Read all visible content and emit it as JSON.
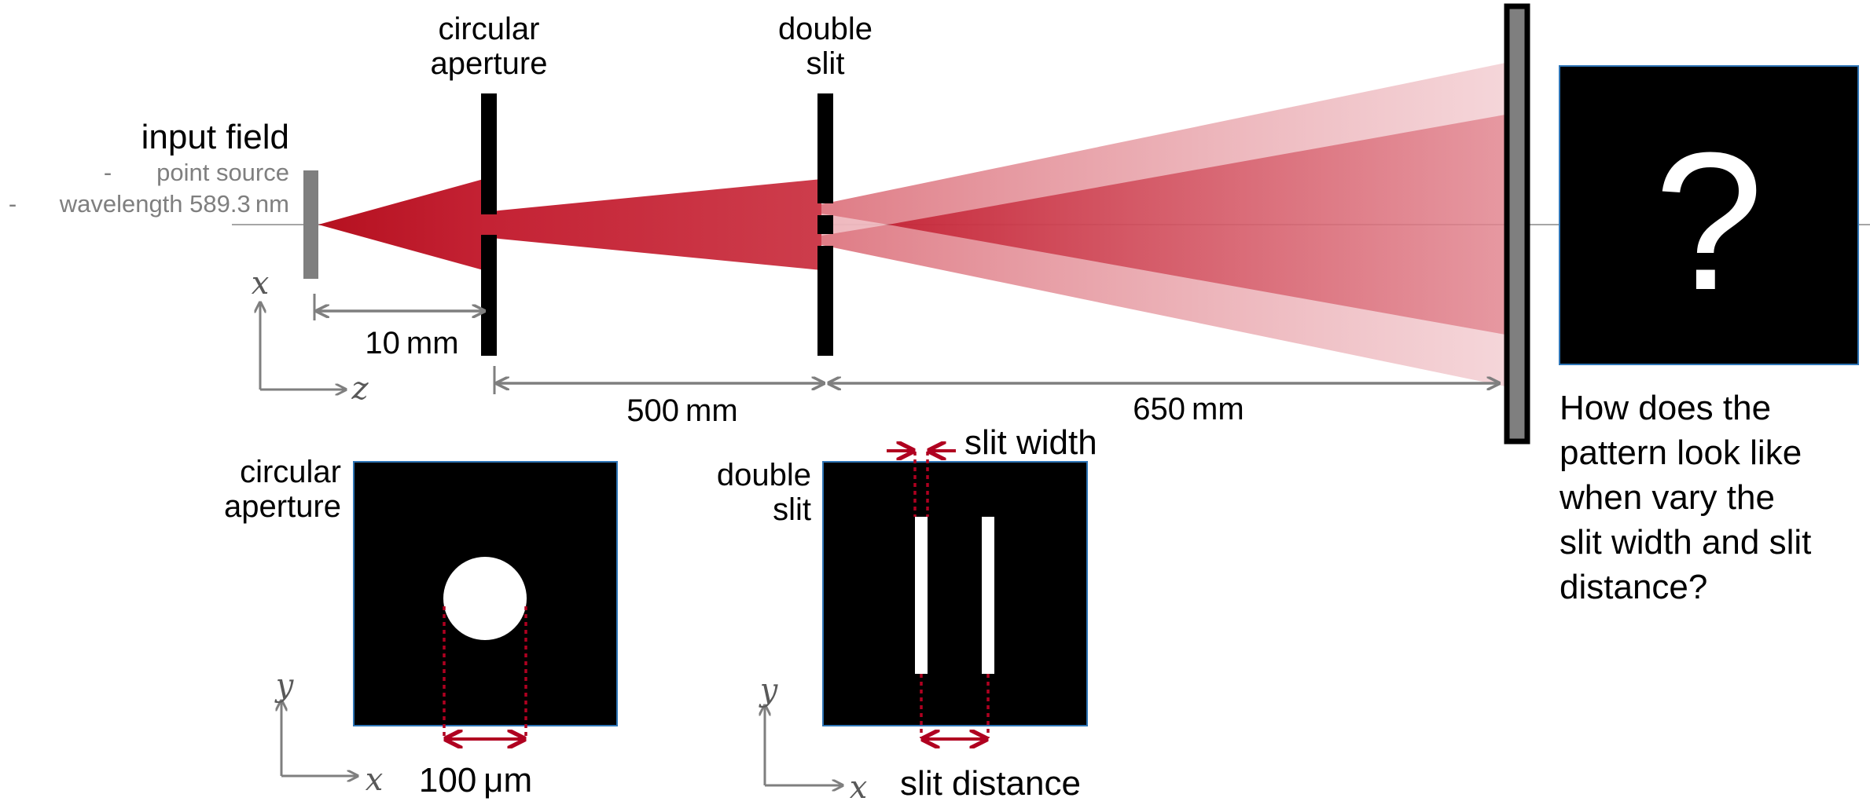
{
  "input_field": {
    "title": "input field",
    "details": [
      "point source",
      "wavelength 589.3 nm"
    ]
  },
  "labels": {
    "aperture_top": [
      "circular",
      "aperture"
    ],
    "slit_top": [
      "double",
      "slit"
    ],
    "aperture_panel": [
      "circular",
      "aperture"
    ],
    "slit_panel": [
      "double",
      "slit"
    ]
  },
  "distances": {
    "source_to_aperture": "10 mm",
    "aperture_to_slit": "500 mm",
    "slit_to_screen": "650 mm"
  },
  "measures": {
    "aperture_diameter": "100 μm",
    "slit_width": "slit width",
    "slit_distance": "slit distance"
  },
  "axes": {
    "x": "x",
    "y": "y",
    "z": "z"
  },
  "question": {
    "symbol": "?",
    "lines": [
      "How does the",
      "pattern look like",
      "when vary the",
      "slit width and slit",
      "distance?"
    ]
  },
  "colors": {
    "beam": "#c0182a",
    "dimension_lines": "#7f7f7f",
    "measure_markers": "#b00020",
    "panel_border": "#2e75b6"
  }
}
